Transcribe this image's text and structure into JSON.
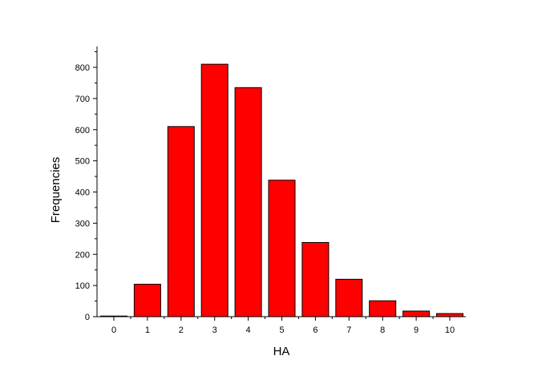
{
  "chart_data": {
    "type": "bar",
    "xlabel": "HA",
    "ylabel": "Frequencies",
    "categories": [
      "0",
      "1",
      "2",
      "3",
      "4",
      "5",
      "6",
      "7",
      "8",
      "9",
      "10"
    ],
    "values": [
      2,
      104,
      610,
      810,
      735,
      438,
      238,
      120,
      51,
      18,
      10
    ],
    "ylim": [
      0,
      870
    ],
    "yticks": [
      0,
      100,
      200,
      300,
      400,
      500,
      600,
      700,
      800
    ],
    "grid": false,
    "legend": "none",
    "bar_color": "#ff0000",
    "bar_edge_color": "#000000"
  }
}
